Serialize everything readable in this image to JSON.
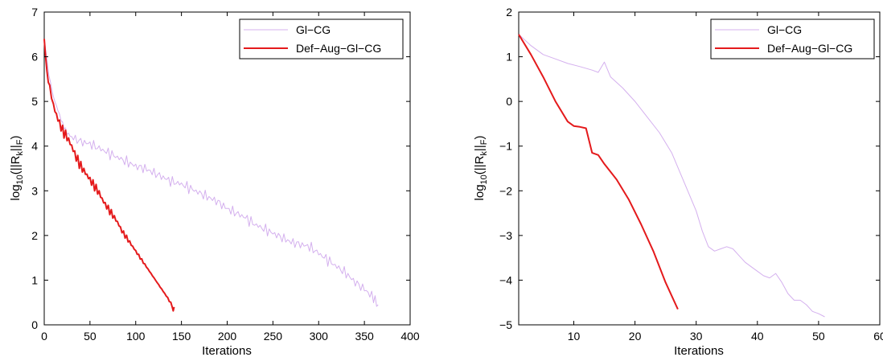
{
  "colors": {
    "glcg": "#d4b0ee",
    "defaug": "#e41a1c",
    "axis": "#000000"
  },
  "chart_data": [
    {
      "type": "line",
      "xlabel": "Iterations",
      "ylabel": {
        "base": "log",
        "sub": "10",
        "mid": "(||R",
        "sub2": "k",
        "mid2": "||",
        "sub3": "F",
        "end": ")"
      },
      "xlim": [
        0,
        400
      ],
      "ylim": [
        0,
        7
      ],
      "xticks": [
        "0",
        "50",
        "100",
        "150",
        "200",
        "250",
        "300",
        "350",
        "400"
      ],
      "yticks": [
        "0",
        "1",
        "2",
        "3",
        "4",
        "5",
        "6",
        "7"
      ],
      "legend_position": "top-right",
      "series": [
        {
          "name": "Gl−CG",
          "color_key": "glcg",
          "oscillate": true,
          "x": [
            0,
            5,
            10,
            15,
            20,
            25,
            30,
            40,
            50,
            60,
            70,
            80,
            90,
            100,
            110,
            120,
            130,
            140,
            150,
            160,
            170,
            180,
            190,
            200,
            210,
            220,
            230,
            240,
            250,
            260,
            270,
            280,
            290,
            300,
            310,
            320,
            330,
            340,
            350,
            360,
            365
          ],
          "y": [
            6.4,
            5.6,
            5.1,
            4.8,
            4.5,
            4.3,
            4.2,
            4.1,
            4.05,
            3.95,
            3.85,
            3.75,
            3.65,
            3.55,
            3.5,
            3.4,
            3.3,
            3.2,
            3.15,
            3.05,
            2.95,
            2.85,
            2.75,
            2.6,
            2.5,
            2.4,
            2.25,
            2.15,
            2.05,
            1.95,
            1.85,
            1.8,
            1.75,
            1.6,
            1.45,
            1.3,
            1.15,
            0.95,
            0.8,
            0.6,
            0.45
          ]
        },
        {
          "name": "Def−Aug−Gl−CG",
          "color_key": "defaug",
          "oscillate": true,
          "x": [
            0,
            3,
            6,
            10,
            15,
            20,
            25,
            30,
            35,
            40,
            45,
            50,
            55,
            60,
            65,
            70,
            75,
            80,
            85,
            90,
            95,
            100,
            105,
            110,
            115,
            120,
            125,
            130,
            135,
            140,
            142
          ],
          "y": [
            6.4,
            5.6,
            5.35,
            4.9,
            4.6,
            4.35,
            4.2,
            4.0,
            3.75,
            3.55,
            3.4,
            3.25,
            3.1,
            2.95,
            2.75,
            2.6,
            2.45,
            2.3,
            2.1,
            1.95,
            1.8,
            1.65,
            1.5,
            1.35,
            1.2,
            1.05,
            0.9,
            0.75,
            0.6,
            0.42,
            0.4
          ]
        }
      ]
    },
    {
      "type": "line",
      "xlabel": "Iterations",
      "ylabel": {
        "base": "log",
        "sub": "10",
        "mid": "(||R",
        "sub2": "k",
        "mid2": "||",
        "sub3": "F",
        "end": ")"
      },
      "xlim": [
        1,
        60
      ],
      "ylim": [
        -5,
        2
      ],
      "xticks": [
        "10",
        "20",
        "30",
        "40",
        "50",
        "60"
      ],
      "xtick_values": [
        10,
        20,
        30,
        40,
        50,
        60
      ],
      "yticks": [
        "2",
        "1",
        "0",
        "−1",
        "−2",
        "−3",
        "−4",
        "−5"
      ],
      "ytick_values": [
        2,
        1,
        0,
        -1,
        -2,
        -3,
        -4,
        -5
      ],
      "legend_position": "top-right",
      "series": [
        {
          "name": "Gl−CG",
          "color_key": "glcg",
          "oscillate": false,
          "x": [
            1,
            3,
            5,
            7,
            9,
            11,
            13,
            14,
            15,
            16,
            18,
            20,
            22,
            24,
            26,
            28,
            30,
            31,
            32,
            33,
            34,
            35,
            36,
            37,
            38,
            39,
            40,
            41,
            42,
            43,
            44,
            45,
            46,
            47,
            48,
            49,
            50,
            51
          ],
          "y": [
            1.5,
            1.25,
            1.05,
            0.95,
            0.85,
            0.78,
            0.7,
            0.65,
            0.88,
            0.55,
            0.3,
            0.0,
            -0.35,
            -0.7,
            -1.15,
            -1.8,
            -2.45,
            -2.9,
            -3.25,
            -3.35,
            -3.3,
            -3.25,
            -3.3,
            -3.45,
            -3.6,
            -3.7,
            -3.8,
            -3.9,
            -3.95,
            -3.85,
            -4.05,
            -4.3,
            -4.45,
            -4.45,
            -4.55,
            -4.7,
            -4.75,
            -4.82
          ]
        },
        {
          "name": "Def−Aug−Gl−CG",
          "color_key": "defaug",
          "oscillate": false,
          "x": [
            1,
            3,
            5,
            7,
            9,
            10,
            11,
            12,
            13,
            14,
            15,
            17,
            19,
            21,
            23,
            25,
            27
          ],
          "y": [
            1.5,
            1.05,
            0.55,
            0.0,
            -0.45,
            -0.55,
            -0.57,
            -0.6,
            -1.15,
            -1.2,
            -1.4,
            -1.75,
            -2.2,
            -2.75,
            -3.35,
            -4.05,
            -4.65
          ]
        }
      ]
    }
  ]
}
